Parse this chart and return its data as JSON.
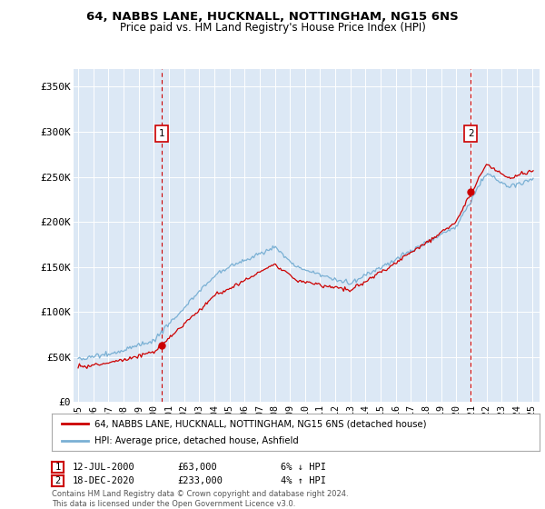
{
  "title1": "64, NABBS LANE, HUCKNALL, NOTTINGHAM, NG15 6NS",
  "title2": "Price paid vs. HM Land Registry's House Price Index (HPI)",
  "ylabel_ticks": [
    "£0",
    "£50K",
    "£100K",
    "£150K",
    "£200K",
    "£250K",
    "£300K",
    "£350K"
  ],
  "ytick_values": [
    0,
    50000,
    100000,
    150000,
    200000,
    250000,
    300000,
    350000
  ],
  "ylim": [
    0,
    370000
  ],
  "xlim_start": 1994.7,
  "xlim_end": 2025.5,
  "sale1": {
    "date_x": 2000.53,
    "price": 63000,
    "label": "1"
  },
  "sale2": {
    "date_x": 2020.96,
    "price": 233000,
    "label": "2"
  },
  "legend_line1": "64, NABBS LANE, HUCKNALL, NOTTINGHAM, NG15 6NS (detached house)",
  "legend_line2": "HPI: Average price, detached house, Ashfield",
  "annotation1_date": "12-JUL-2000",
  "annotation1_price": "£63,000",
  "annotation1_hpi": "6% ↓ HPI",
  "annotation2_date": "18-DEC-2020",
  "annotation2_price": "£233,000",
  "annotation2_hpi": "4% ↑ HPI",
  "footer": "Contains HM Land Registry data © Crown copyright and database right 2024.\nThis data is licensed under the Open Government Licence v3.0.",
  "line_color_sale": "#cc0000",
  "line_color_hpi": "#7ab0d4",
  "background_color": "#ffffff",
  "plot_bg_color": "#dce8f5"
}
